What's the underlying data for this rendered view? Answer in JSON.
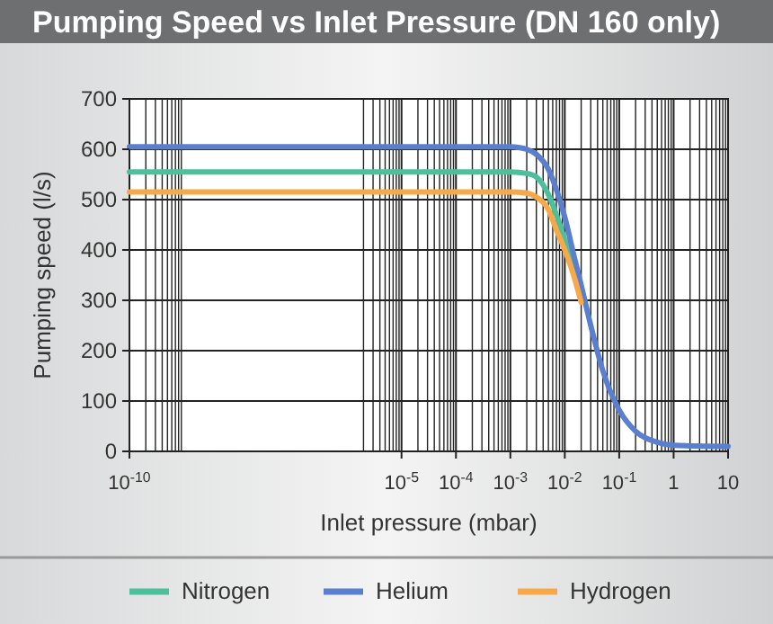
{
  "chart_data": {
    "type": "line",
    "title": "Pumping Speed vs Inlet Pressure (DN 160 only)",
    "xlabel": "Inlet pressure (mbar)",
    "ylabel": "Pumping speed (l/s)",
    "log": "x",
    "grid": true,
    "legend": "bottom",
    "line_style": "solid",
    "marker": "none",
    "xlim": [
      1e-10,
      10
    ],
    "ylim": [
      0,
      700
    ],
    "yticks": [
      0,
      100,
      200,
      300,
      400,
      500,
      600,
      700
    ],
    "xticks": [
      {
        "value": 1e-10,
        "label": "10$^{-10}$"
      },
      {
        "value": 1e-05,
        "label": "10$^{-5}$"
      },
      {
        "value": 0.0001,
        "label": "10$^{-4}$"
      },
      {
        "value": 0.001,
        "label": "10$^{-3}$"
      },
      {
        "value": 0.01,
        "label": "10$^{-2}$"
      },
      {
        "value": 0.1,
        "label": "10$^{-1}$"
      },
      {
        "value": 1,
        "label": "1"
      },
      {
        "value": 10,
        "label": "10"
      },
      {
        "value": 2e-10,
        "label": null
      },
      {
        "value": 3e-10,
        "label": null
      },
      {
        "value": 4e-10,
        "label": null
      },
      {
        "value": 5e-10,
        "label": null
      },
      {
        "value": 6e-10,
        "label": null
      },
      {
        "value": 7e-10,
        "label": null
      },
      {
        "value": 8e-10,
        "label": null
      },
      {
        "value": 9e-10,
        "label": null
      },
      {
        "value": 2e-06,
        "label": null
      },
      {
        "value": 3e-06,
        "label": null
      },
      {
        "value": 4e-06,
        "label": null
      },
      {
        "value": 5e-06,
        "label": null
      },
      {
        "value": 6e-06,
        "label": null
      },
      {
        "value": 7e-06,
        "label": null
      },
      {
        "value": 8e-06,
        "label": null
      },
      {
        "value": 9e-06,
        "label": null
      },
      {
        "value": 2e-05,
        "label": null
      },
      {
        "value": 3e-05,
        "label": null
      },
      {
        "value": 4e-05,
        "label": null
      },
      {
        "value": 5e-05,
        "label": null
      },
      {
        "value": 6e-05,
        "label": null
      },
      {
        "value": 7e-05,
        "label": null
      },
      {
        "value": 8e-05,
        "label": null
      },
      {
        "value": 9e-05,
        "label": null
      },
      {
        "value": 0.0002,
        "label": null
      },
      {
        "value": 0.0003,
        "label": null
      },
      {
        "value": 0.0004,
        "label": null
      },
      {
        "value": 0.0005,
        "label": null
      },
      {
        "value": 0.0006,
        "label": null
      },
      {
        "value": 0.0007,
        "label": null
      },
      {
        "value": 0.0008,
        "label": null
      },
      {
        "value": 0.0009,
        "label": null
      },
      {
        "value": 0.002,
        "label": null
      },
      {
        "value": 0.003,
        "label": null
      },
      {
        "value": 0.004,
        "label": null
      },
      {
        "value": 0.005,
        "label": null
      },
      {
        "value": 0.006,
        "label": null
      },
      {
        "value": 0.007,
        "label": null
      },
      {
        "value": 0.008,
        "label": null
      },
      {
        "value": 0.009,
        "label": null
      },
      {
        "value": 0.02,
        "label": null
      },
      {
        "value": 0.03,
        "label": null
      },
      {
        "value": 0.04,
        "label": null
      },
      {
        "value": 0.05,
        "label": null
      },
      {
        "value": 0.06,
        "label": null
      },
      {
        "value": 0.07,
        "label": null
      },
      {
        "value": 0.08,
        "label": null
      },
      {
        "value": 0.09,
        "label": null
      },
      {
        "value": 0.2,
        "label": null
      },
      {
        "value": 0.3,
        "label": null
      },
      {
        "value": 0.4,
        "label": null
      },
      {
        "value": 0.5,
        "label": null
      },
      {
        "value": 0.6,
        "label": null
      },
      {
        "value": 0.7,
        "label": null
      },
      {
        "value": 0.8,
        "label": null
      },
      {
        "value": 0.9,
        "label": null
      },
      {
        "value": 2,
        "label": null
      },
      {
        "value": 3,
        "label": null
      },
      {
        "value": 4,
        "label": null
      },
      {
        "value": 5,
        "label": null
      },
      {
        "value": 6,
        "label": null
      },
      {
        "value": 7,
        "label": null
      },
      {
        "value": 8,
        "label": null
      },
      {
        "value": 9,
        "label": null
      }
    ],
    "series": [
      {
        "name": "Nitrogen",
        "color": "#4dbf9b",
        "x": [
          1e-10,
          0.001,
          0.002,
          0.003,
          0.005,
          0.007,
          0.01,
          0.015,
          0.02
        ],
        "values": [
          555,
          555,
          552,
          545,
          510,
          470,
          420,
          360,
          312
        ]
      },
      {
        "name": "Helium",
        "color": "#5b7fcf",
        "x": [
          1e-10,
          0.001,
          0.0015,
          0.002,
          0.003,
          0.005,
          0.007,
          0.01,
          0.015,
          0.02,
          0.03,
          0.05,
          0.1,
          0.2,
          0.5,
          1,
          10
        ],
        "values": [
          605,
          605,
          603,
          600,
          590,
          560,
          520,
          465,
          385,
          330,
          250,
          160,
          82,
          40,
          18,
          12,
          10
        ]
      },
      {
        "name": "Hydrogen",
        "color": "#f7a94a",
        "x": [
          1e-10,
          0.001,
          0.002,
          0.003,
          0.005,
          0.007,
          0.01,
          0.015,
          0.02
        ],
        "values": [
          515,
          515,
          513,
          505,
          480,
          440,
          400,
          345,
          296
        ]
      }
    ]
  }
}
